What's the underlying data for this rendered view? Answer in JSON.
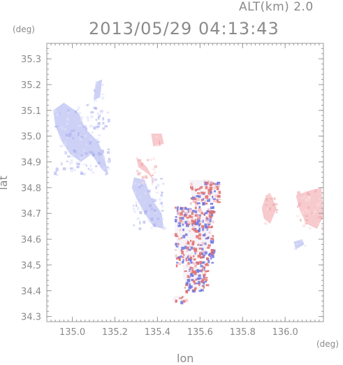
{
  "header": {
    "altitude_label": "ALT(km) 2.0",
    "timestamp": "2013/05/29 04:13:43"
  },
  "axes": {
    "x_label": "lon",
    "y_label": "lat",
    "x_unit": "(deg)",
    "y_unit": "(deg)"
  },
  "chart_data": {
    "type": "heatmap",
    "xlabel": "lon",
    "ylabel": "lat",
    "xlim": [
      134.88,
      136.18
    ],
    "ylim": [
      34.28,
      35.36
    ],
    "x_ticks": [
      "135.0",
      "135.2",
      "135.4",
      "135.6",
      "135.8",
      "136.0"
    ],
    "x_tick_values": [
      135.0,
      135.2,
      135.4,
      135.6,
      135.8,
      136.0
    ],
    "y_ticks": [
      "34.3",
      "34.4",
      "34.5",
      "34.6",
      "34.7",
      "34.8",
      "34.9",
      "35.0",
      "35.1",
      "35.2",
      "35.3"
    ],
    "y_tick_values": [
      34.3,
      34.4,
      34.5,
      34.6,
      34.7,
      34.8,
      34.9,
      35.0,
      35.1,
      35.2,
      35.3
    ],
    "colors": {
      "negative": "#c8ccf4",
      "positive": "#f6c4c8",
      "strong_negative": "#6f74e0",
      "strong_positive": "#e06f6f",
      "axis": "#999999"
    },
    "regions": [
      {
        "sign": "negative",
        "polygon": [
          [
            134.91,
            35.1
          ],
          [
            134.96,
            35.13
          ],
          [
            135.03,
            35.09
          ],
          [
            135.06,
            35.03
          ],
          [
            135.12,
            34.98
          ],
          [
            135.15,
            34.92
          ],
          [
            135.17,
            34.85
          ],
          [
            135.14,
            34.87
          ],
          [
            135.09,
            34.93
          ],
          [
            135.04,
            34.9
          ],
          [
            134.99,
            34.93
          ],
          [
            134.95,
            34.98
          ],
          [
            134.92,
            35.04
          ]
        ]
      },
      {
        "sign": "negative",
        "polygon": [
          [
            135.11,
            35.21
          ],
          [
            135.14,
            35.22
          ],
          [
            135.13,
            35.15
          ],
          [
            135.1,
            35.14
          ]
        ]
      },
      {
        "sign": "negative",
        "polygon": [
          [
            135.29,
            34.84
          ],
          [
            135.34,
            34.83
          ],
          [
            135.37,
            34.76
          ],
          [
            135.42,
            34.7
          ],
          [
            135.43,
            34.64
          ],
          [
            135.38,
            34.65
          ],
          [
            135.34,
            34.7
          ],
          [
            135.3,
            34.76
          ],
          [
            135.28,
            34.8
          ]
        ]
      },
      {
        "sign": "positive",
        "polygon": [
          [
            135.37,
            35.01
          ],
          [
            135.42,
            35.01
          ],
          [
            135.43,
            34.97
          ],
          [
            135.38,
            34.96
          ]
        ]
      },
      {
        "sign": "positive",
        "polygon": [
          [
            135.3,
            34.92
          ],
          [
            135.35,
            34.88
          ],
          [
            135.39,
            34.82
          ],
          [
            135.36,
            34.85
          ],
          [
            135.31,
            34.88
          ]
        ]
      },
      {
        "sign": "mixed",
        "polygon": [
          [
            135.49,
            34.73
          ],
          [
            135.58,
            34.7
          ],
          [
            135.65,
            34.68
          ],
          [
            135.66,
            34.6
          ],
          [
            135.62,
            34.54
          ],
          [
            135.55,
            34.5
          ],
          [
            135.5,
            34.55
          ],
          [
            135.48,
            34.63
          ]
        ]
      },
      {
        "sign": "mixed",
        "polygon": [
          [
            135.55,
            34.83
          ],
          [
            135.63,
            34.83
          ],
          [
            135.68,
            34.82
          ],
          [
            135.69,
            34.76
          ],
          [
            135.62,
            34.74
          ],
          [
            135.56,
            34.77
          ]
        ]
      },
      {
        "sign": "mixed",
        "polygon": [
          [
            135.52,
            34.5
          ],
          [
            135.58,
            34.5
          ],
          [
            135.63,
            34.46
          ],
          [
            135.61,
            34.4
          ],
          [
            135.55,
            34.41
          ],
          [
            135.52,
            34.45
          ]
        ]
      },
      {
        "sign": "positive",
        "polygon": [
          [
            135.91,
            34.77
          ],
          [
            135.93,
            34.78
          ],
          [
            135.96,
            34.72
          ],
          [
            135.93,
            34.66
          ],
          [
            135.9,
            34.68
          ],
          [
            135.89,
            34.72
          ]
        ]
      },
      {
        "sign": "positive",
        "polygon": [
          [
            136.05,
            34.77
          ],
          [
            136.12,
            34.79
          ],
          [
            136.17,
            34.8
          ],
          [
            136.18,
            34.69
          ],
          [
            136.15,
            34.64
          ],
          [
            136.1,
            34.66
          ],
          [
            136.07,
            34.71
          ]
        ]
      },
      {
        "sign": "negative",
        "polygon": [
          [
            136.04,
            34.59
          ],
          [
            136.08,
            34.6
          ],
          [
            136.09,
            34.58
          ],
          [
            136.05,
            34.56
          ]
        ]
      },
      {
        "sign": "mixed",
        "polygon": [
          [
            135.48,
            34.38
          ],
          [
            135.53,
            34.38
          ],
          [
            135.53,
            34.36
          ],
          [
            135.47,
            34.36
          ]
        ]
      }
    ]
  }
}
